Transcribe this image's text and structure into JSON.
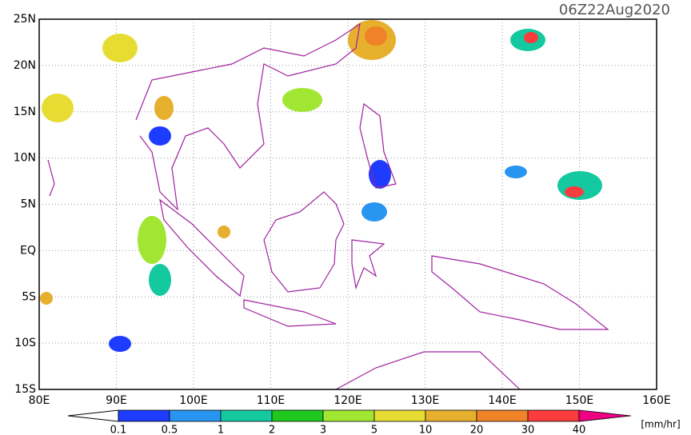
{
  "map": {
    "title": "06Z22Aug2020",
    "lat_labels": [
      "25N",
      "20N",
      "15N",
      "10N",
      "5N",
      "EQ",
      "5S",
      "10S",
      "15S"
    ],
    "lon_labels": [
      "80E",
      "90E",
      "100E",
      "110E",
      "120E",
      "130E",
      "140E",
      "150E",
      "160E"
    ],
    "colorbar": {
      "labels": [
        0.1,
        0.5,
        1,
        2,
        3,
        5,
        10,
        20,
        30,
        40
      ],
      "colors": [
        "#1e3cff",
        "#2896f0",
        "#14c8a0",
        "#1ec81e",
        "#a0e632",
        "#e6dc32",
        "#e6af2d",
        "#f08228",
        "#fa3c3c",
        "#f00082"
      ],
      "unit": "[mm/hr]"
    }
  }
}
